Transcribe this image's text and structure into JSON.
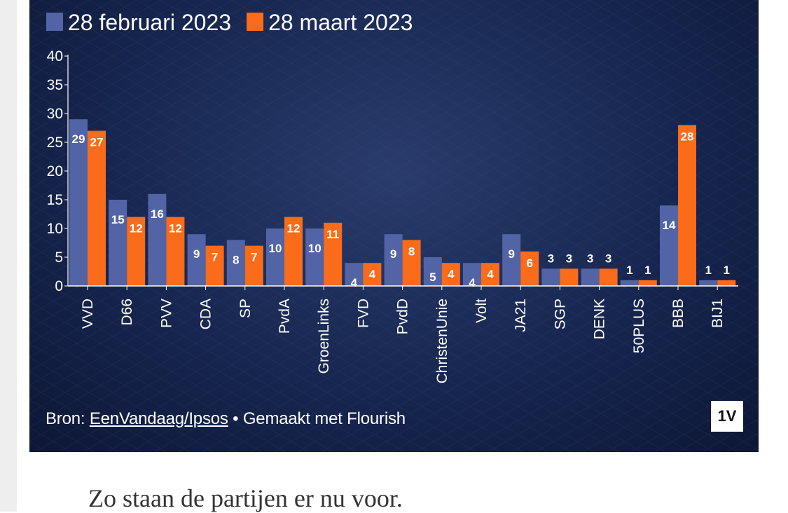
{
  "chart_data": {
    "type": "bar",
    "categories": [
      "VVD",
      "D66",
      "PVV",
      "CDA",
      "SP",
      "PvdA",
      "GroenLinks",
      "FVD",
      "PvdD",
      "ChristenUnie",
      "Volt",
      "JA21",
      "SGP",
      "DENK",
      "50PLUS",
      "BBB",
      "BIJ1"
    ],
    "series": [
      {
        "name": "28 februari 2023",
        "values": [
          29,
          15,
          16,
          9,
          8,
          10,
          10,
          4,
          9,
          5,
          4,
          9,
          3,
          3,
          1,
          14,
          1
        ]
      },
      {
        "name": "28 maart 2023",
        "values": [
          27,
          12,
          12,
          7,
          7,
          12,
          11,
          4,
          8,
          4,
          4,
          6,
          3,
          3,
          1,
          28,
          1
        ]
      }
    ],
    "ylim": [
      0,
      40
    ],
    "yticks": [
      0,
      5,
      10,
      15,
      20,
      25,
      30,
      35,
      40
    ],
    "grid": false,
    "legend": "top-left",
    "colors": {
      "series_0": "#5264a5",
      "series_1": "#fa6b1a",
      "background": "#172650"
    }
  },
  "footer": {
    "source_prefix": "Bron: ",
    "source_link": "EenVandaag/Ipsos",
    "separator": " • ",
    "made_with": "Gemaakt met Flourish",
    "logo": "1V"
  },
  "caption": "Zo staan de partijen er nu voor."
}
